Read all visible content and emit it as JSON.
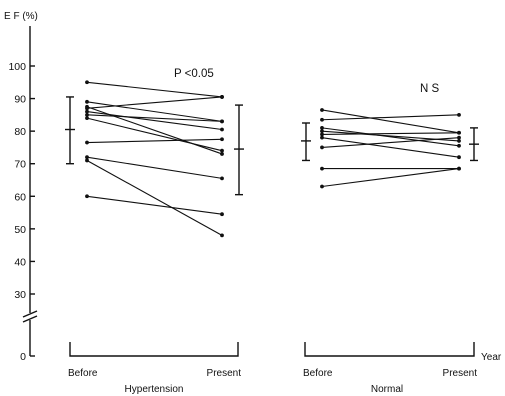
{
  "chart_data": {
    "type": "line",
    "y_axis": {
      "label": "E F (%)",
      "ticks": [
        0,
        30,
        40,
        50,
        60,
        70,
        80,
        90,
        100
      ],
      "axis_break": true
    },
    "x_unit_label": "Year",
    "groups": [
      {
        "name": "Hypertension",
        "categories": [
          "Before",
          "Present"
        ],
        "annotation": "P <0.05",
        "pairs": [
          [
            95,
            90.5
          ],
          [
            89,
            83
          ],
          [
            87.5,
            73
          ],
          [
            87,
            90.5
          ],
          [
            86,
            80.5
          ],
          [
            85,
            83
          ],
          [
            84,
            74
          ],
          [
            76.5,
            77.5
          ],
          [
            72,
            65.5
          ],
          [
            71,
            48
          ],
          [
            60,
            54.5
          ]
        ],
        "summary": [
          {
            "mean": 80.5,
            "sd_upper": 90.5,
            "sd_lower": 70
          },
          {
            "mean": 74.5,
            "sd_upper": 88,
            "sd_lower": 60.5
          }
        ]
      },
      {
        "name": "Normal",
        "categories": [
          "Before",
          "Present"
        ],
        "annotation": "N S",
        "pairs": [
          [
            86.5,
            79.5
          ],
          [
            83.5,
            85
          ],
          [
            81,
            75.5
          ],
          [
            80,
            77
          ],
          [
            79,
            79.5
          ],
          [
            78,
            72
          ],
          [
            75,
            78
          ],
          [
            68.5,
            68.5
          ],
          [
            63,
            68.5
          ]
        ],
        "summary": [
          {
            "mean": 77,
            "sd_upper": 82.5,
            "sd_lower": 71
          },
          {
            "mean": 76,
            "sd_upper": 81,
            "sd_lower": 71
          }
        ]
      }
    ]
  }
}
